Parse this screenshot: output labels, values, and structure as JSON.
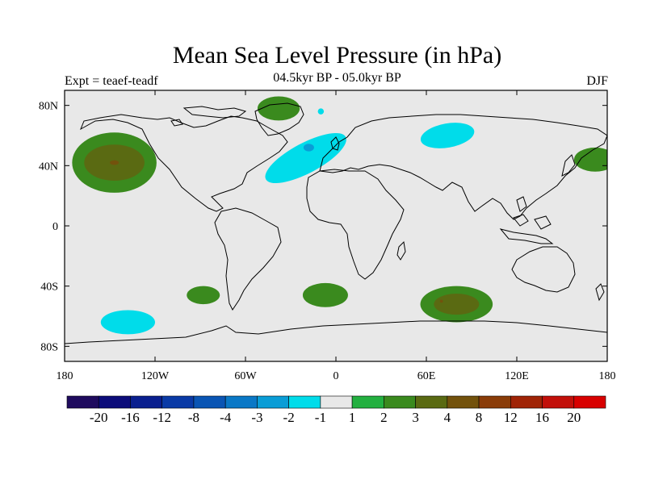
{
  "title": "Mean Sea Level Pressure (in hPa)",
  "expt_label": "Expt = teaef-teadf",
  "period_label": "04.5kyr BP - 05.0kyr BP",
  "season_label": "DJF",
  "axes": {
    "lat_ticks": [
      {
        "value": 80,
        "label": "80N"
      },
      {
        "value": 40,
        "label": "40N"
      },
      {
        "value": 0,
        "label": "0"
      },
      {
        "value": -40,
        "label": "40S"
      },
      {
        "value": -80,
        "label": "80S"
      }
    ],
    "lon_ticks": [
      {
        "value": -180,
        "label": "180"
      },
      {
        "value": -120,
        "label": "120W"
      },
      {
        "value": -60,
        "label": "60W"
      },
      {
        "value": 0,
        "label": "0"
      },
      {
        "value": 60,
        "label": "60E"
      },
      {
        "value": 120,
        "label": "120E"
      },
      {
        "value": 180,
        "label": "180"
      }
    ],
    "lon_range": [
      -180,
      180
    ],
    "lat_range": [
      -90,
      90
    ]
  },
  "colorbar": {
    "colors": [
      "#1f0b5e",
      "#0c0c7a",
      "#0a1f8f",
      "#0a3aa6",
      "#0a55b4",
      "#0a78c6",
      "#0a9dd6",
      "#00dcea",
      "#e8e8e8",
      "#23b040",
      "#3a8a1e",
      "#5a6a12",
      "#73520c",
      "#8a3c08",
      "#a02406",
      "#c2100a",
      "#d80000"
    ],
    "labels": [
      "-20",
      "-16",
      "-12",
      "-8",
      "-4",
      "-3",
      "-2",
      "-1",
      "1",
      "2",
      "3",
      "4",
      "8",
      "12",
      "16",
      "20"
    ]
  },
  "chart_data": {
    "type": "heatmap",
    "title": "Mean Sea Level Pressure (in hPa)",
    "subtitle": "04.5kyr BP - 05.0kyr BP",
    "background_color": "#e8e8e8",
    "anomalies": [
      {
        "lon": -147,
        "lat": 42,
        "rx": 28,
        "ry": 20,
        "level": "2"
      },
      {
        "lon": -147,
        "lat": 42,
        "rx": 20,
        "ry": 12,
        "level": "3"
      },
      {
        "lon": -147,
        "lat": 42,
        "rx": 3,
        "ry": 1.5,
        "level": "4"
      },
      {
        "lon": -38,
        "lat": 78,
        "rx": 14,
        "ry": 8,
        "level": "2"
      },
      {
        "lon": 172,
        "lat": 44,
        "rx": 14,
        "ry": 8,
        "level": "2"
      },
      {
        "lon": -88,
        "lat": -46,
        "rx": 11,
        "ry": 6,
        "level": "2"
      },
      {
        "lon": -7,
        "lat": -46,
        "rx": 15,
        "ry": 8,
        "level": "2"
      },
      {
        "lon": 80,
        "lat": -52,
        "rx": 24,
        "ry": 12,
        "level": "2"
      },
      {
        "lon": 80,
        "lat": -52,
        "rx": 15,
        "ry": 7,
        "level": "3"
      },
      {
        "lon": 70,
        "lat": -50,
        "rx": 1,
        "ry": 1,
        "level": "4"
      },
      {
        "lon": -20,
        "lat": 45,
        "rx": 30,
        "ry": 10,
        "level": "-1",
        "rot": -28
      },
      {
        "lon": -18,
        "lat": 52,
        "rx": 3.5,
        "ry": 2.5,
        "level": "-2"
      },
      {
        "lon": 74,
        "lat": 60,
        "rx": 18,
        "ry": 8,
        "level": "-1",
        "rot": -10
      },
      {
        "lon": -138,
        "lat": -64,
        "rx": 18,
        "ry": 8,
        "level": "-1"
      },
      {
        "lon": -10,
        "lat": 76,
        "rx": 2,
        "ry": 2,
        "level": "-1"
      }
    ]
  }
}
